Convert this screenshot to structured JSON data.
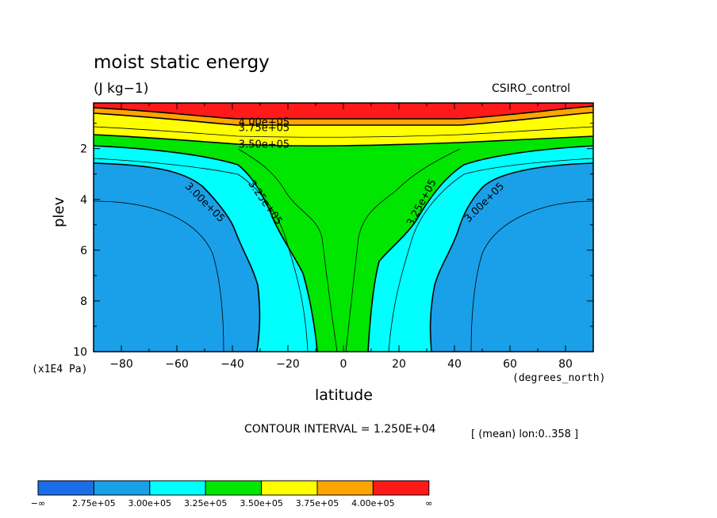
{
  "chart_data": {
    "type": "contour",
    "title": "moist static energy",
    "units": "(J kg−1)",
    "model_label": "CSIRO_control",
    "xlabel": "latitude",
    "x_units": "(degrees_north)",
    "ylabel": "plev",
    "y_units": "(x1E4 Pa)",
    "xlim": [
      -90,
      90
    ],
    "ylim": [
      10,
      0.2
    ],
    "x_ticks": [
      -80,
      -60,
      -40,
      -20,
      0,
      20,
      40,
      60,
      80
    ],
    "x_tick_labels": [
      "−80",
      "−60",
      "−40",
      "−20",
      "0",
      "20",
      "40",
      "60",
      "80"
    ],
    "y_ticks": [
      2,
      4,
      6,
      8,
      10
    ],
    "contour_interval_text": "CONTOUR INTERVAL = 1.250E+04",
    "mean_text": "[ (mean) lon:0..358 ]",
    "contour_labels": [
      {
        "text": "4.00e+05",
        "lat": -20,
        "plev": 0.7
      },
      {
        "text": "3.75e+05",
        "lat": -20,
        "plev": 1.1
      },
      {
        "text": "3.50e+05",
        "lat": -20,
        "plev": 1.6
      },
      {
        "text": "3.00e+05",
        "lat": -50,
        "plev": 4.0
      },
      {
        "text": "3.25e+05",
        "lat": -29,
        "plev": 4.0
      },
      {
        "text": "3.25e+05",
        "lat": 28,
        "plev": 4.0
      },
      {
        "text": "3.00e+05",
        "lat": 52,
        "plev": 4.0
      }
    ],
    "legend": {
      "colors": [
        "#1c6ee8",
        "#1aa0e8",
        "#00ffff",
        "#00e600",
        "#ffff00",
        "#ffa500",
        "#ff1a1a"
      ],
      "labels": [
        "−∞",
        "2.75e+05",
        "3.00e+05",
        "3.25e+05",
        "3.50e+05",
        "3.75e+05",
        "4.00e+05",
        "∞"
      ]
    },
    "fill_colors": {
      "lt_275": "#1c6ee8",
      "300": "#1aa0e8",
      "325": "#00ffff",
      "350": "#00e600",
      "375": "#ffff00",
      "400": "#ffa500",
      "gt_400": "#ff1a1a"
    }
  }
}
